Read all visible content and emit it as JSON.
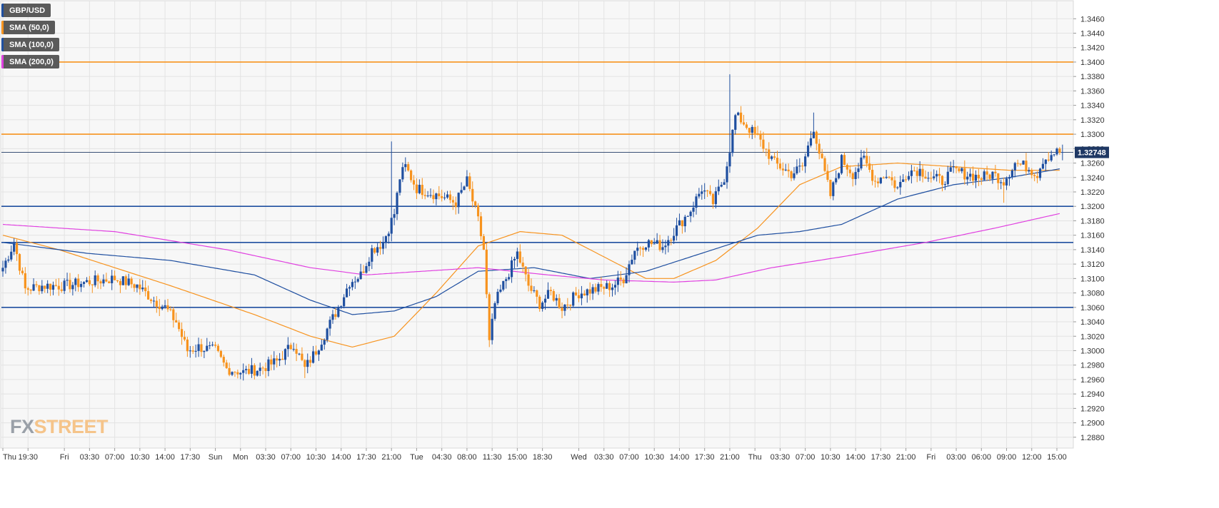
{
  "legend": [
    {
      "label": "GBP/USD",
      "color": "#1f4fa0"
    },
    {
      "label": "SMA (50,0)",
      "color": "#f7931e"
    },
    {
      "label": "SMA (100,0)",
      "color": "#1f4fa0"
    },
    {
      "label": "SMA (200,0)",
      "color": "#e040e0"
    }
  ],
  "watermark": {
    "part1": "FX",
    "part2": "STREET"
  },
  "chart_data": {
    "type": "candlestick",
    "symbol": "GBP/USD",
    "current_price": "1.32748",
    "ylim": [
      1.2865,
      1.3485
    ],
    "grid": true,
    "y_ticks": [
      "1.3460",
      "1.3440",
      "1.3420",
      "1.3400",
      "1.3380",
      "1.3360",
      "1.3340",
      "1.3320",
      "1.3300",
      "1.3280",
      "1.3260",
      "1.3240",
      "1.3220",
      "1.3200",
      "1.3180",
      "1.3160",
      "1.3140",
      "1.3120",
      "1.3100",
      "1.3080",
      "1.3060",
      "1.3040",
      "1.3020",
      "1.3000",
      "1.2980",
      "1.2960",
      "1.2940",
      "1.2920",
      "1.2900",
      "1.2880"
    ],
    "x_ticks": [
      "Thu",
      "19:30",
      "Fri",
      "03:30",
      "07:00",
      "10:30",
      "14:00",
      "17:30",
      "Sun",
      "Mon",
      "03:30",
      "07:00",
      "10:30",
      "14:00",
      "17:30",
      "21:00",
      "Tue",
      "04:30",
      "08:00",
      "11:30",
      "15:00",
      "18:30",
      "Wed",
      "03:30",
      "07:00",
      "10:30",
      "14:00",
      "17:30",
      "21:00",
      "Thu",
      "03:30",
      "07:00",
      "10:30",
      "14:00",
      "17:30",
      "21:00",
      "Fri",
      "03:00",
      "06:00",
      "09:00",
      "12:00",
      "15:00"
    ],
    "x_tick_index": [
      0,
      9,
      22,
      31,
      40,
      49,
      58,
      67,
      76,
      85,
      94,
      103,
      112,
      121,
      130,
      139,
      148,
      157,
      166,
      175,
      184,
      193,
      206,
      215,
      224,
      233,
      242,
      251,
      260,
      269,
      278,
      287,
      296,
      305,
      314,
      323,
      332,
      341,
      350,
      359,
      368,
      377
    ],
    "horizontal_levels": [
      {
        "value": 1.34,
        "color": "#f7931e"
      },
      {
        "value": 1.33,
        "color": "#f7931e"
      },
      {
        "value": 1.32,
        "color": "#1f4fa0"
      },
      {
        "value": 1.315,
        "color": "#1f4fa0"
      },
      {
        "value": 1.306,
        "color": "#1f4fa0"
      }
    ],
    "anchors": [
      [
        0,
        1.3115
      ],
      [
        4,
        1.315
      ],
      [
        8,
        1.3085
      ],
      [
        14,
        1.309
      ],
      [
        22,
        1.309
      ],
      [
        30,
        1.3095
      ],
      [
        40,
        1.31
      ],
      [
        48,
        1.309
      ],
      [
        54,
        1.307
      ],
      [
        58,
        1.306
      ],
      [
        62,
        1.304
      ],
      [
        66,
        1.3
      ],
      [
        70,
        1.3005
      ],
      [
        76,
        1.3
      ],
      [
        80,
        1.2975
      ],
      [
        86,
        1.297
      ],
      [
        92,
        1.2975
      ],
      [
        98,
        1.2985
      ],
      [
        104,
        1.301
      ],
      [
        108,
        1.2975
      ],
      [
        112,
        1.3
      ],
      [
        116,
        1.303
      ],
      [
        120,
        1.306
      ],
      [
        124,
        1.3095
      ],
      [
        128,
        1.3105
      ],
      [
        132,
        1.314
      ],
      [
        136,
        1.315
      ],
      [
        140,
        1.319
      ],
      [
        142,
        1.324
      ],
      [
        144,
        1.3255
      ],
      [
        148,
        1.3225
      ],
      [
        152,
        1.322
      ],
      [
        156,
        1.3215
      ],
      [
        162,
        1.3205
      ],
      [
        166,
        1.3235
      ],
      [
        170,
        1.318
      ],
      [
        172,
        1.314
      ],
      [
        174,
        1.301
      ],
      [
        176,
        1.3065
      ],
      [
        180,
        1.31
      ],
      [
        184,
        1.3135
      ],
      [
        188,
        1.309
      ],
      [
        192,
        1.3065
      ],
      [
        196,
        1.308
      ],
      [
        200,
        1.306
      ],
      [
        206,
        1.308
      ],
      [
        212,
        1.3085
      ],
      [
        218,
        1.309
      ],
      [
        222,
        1.31
      ],
      [
        226,
        1.314
      ],
      [
        230,
        1.315
      ],
      [
        236,
        1.3145
      ],
      [
        240,
        1.3165
      ],
      [
        246,
        1.3195
      ],
      [
        250,
        1.3225
      ],
      [
        254,
        1.3205
      ],
      [
        258,
        1.324
      ],
      [
        260,
        1.328
      ],
      [
        262,
        1.3325
      ],
      [
        264,
        1.332
      ],
      [
        270,
        1.3295
      ],
      [
        276,
        1.326
      ],
      [
        282,
        1.3245
      ],
      [
        286,
        1.3255
      ],
      [
        290,
        1.331
      ],
      [
        292,
        1.3275
      ],
      [
        296,
        1.3215
      ],
      [
        300,
        1.3265
      ],
      [
        304,
        1.3245
      ],
      [
        308,
        1.3265
      ],
      [
        312,
        1.3235
      ],
      [
        316,
        1.3245
      ],
      [
        320,
        1.3225
      ],
      [
        324,
        1.325
      ],
      [
        328,
        1.325
      ],
      [
        332,
        1.324
      ],
      [
        336,
        1.3235
      ],
      [
        340,
        1.325
      ],
      [
        344,
        1.3245
      ],
      [
        350,
        1.324
      ],
      [
        354,
        1.3245
      ],
      [
        358,
        1.3235
      ],
      [
        362,
        1.326
      ],
      [
        366,
        1.3255
      ],
      [
        370,
        1.3245
      ],
      [
        372,
        1.3265
      ],
      [
        376,
        1.3275
      ]
    ],
    "sma": [
      {
        "name": "SMA (50,0)",
        "color": "#f7931e",
        "points": [
          [
            0,
            1.316
          ],
          [
            20,
            1.314
          ],
          [
            60,
            1.309
          ],
          [
            90,
            1.305
          ],
          [
            110,
            1.302
          ],
          [
            125,
            1.3005
          ],
          [
            140,
            1.302
          ],
          [
            155,
            1.308
          ],
          [
            170,
            1.3145
          ],
          [
            185,
            1.3165
          ],
          [
            200,
            1.316
          ],
          [
            215,
            1.313
          ],
          [
            230,
            1.31
          ],
          [
            240,
            1.31
          ],
          [
            255,
            1.3125
          ],
          [
            270,
            1.317
          ],
          [
            285,
            1.323
          ],
          [
            300,
            1.3255
          ],
          [
            320,
            1.326
          ],
          [
            340,
            1.3255
          ],
          [
            360,
            1.325
          ],
          [
            378,
            1.325
          ]
        ]
      },
      {
        "name": "SMA (100,0)",
        "color": "#1f4fa0",
        "points": [
          [
            0,
            1.315
          ],
          [
            30,
            1.3135
          ],
          [
            60,
            1.3125
          ],
          [
            90,
            1.3105
          ],
          [
            110,
            1.307
          ],
          [
            125,
            1.305
          ],
          [
            140,
            1.3055
          ],
          [
            155,
            1.3075
          ],
          [
            170,
            1.311
          ],
          [
            190,
            1.3115
          ],
          [
            210,
            1.31
          ],
          [
            230,
            1.311
          ],
          [
            250,
            1.3135
          ],
          [
            270,
            1.316
          ],
          [
            285,
            1.3165
          ],
          [
            300,
            1.3175
          ],
          [
            320,
            1.321
          ],
          [
            340,
            1.323
          ],
          [
            360,
            1.324
          ],
          [
            378,
            1.3252
          ]
        ]
      },
      {
        "name": "SMA (200,0)",
        "color": "#e040e0",
        "points": [
          [
            0,
            1.3175
          ],
          [
            40,
            1.3165
          ],
          [
            80,
            1.314
          ],
          [
            110,
            1.3115
          ],
          [
            130,
            1.3105
          ],
          [
            150,
            1.311
          ],
          [
            170,
            1.3115
          ],
          [
            195,
            1.3105
          ],
          [
            215,
            1.3098
          ],
          [
            240,
            1.3095
          ],
          [
            255,
            1.3098
          ],
          [
            275,
            1.3115
          ],
          [
            300,
            1.313
          ],
          [
            330,
            1.315
          ],
          [
            355,
            1.317
          ],
          [
            378,
            1.319
          ]
        ]
      }
    ]
  }
}
